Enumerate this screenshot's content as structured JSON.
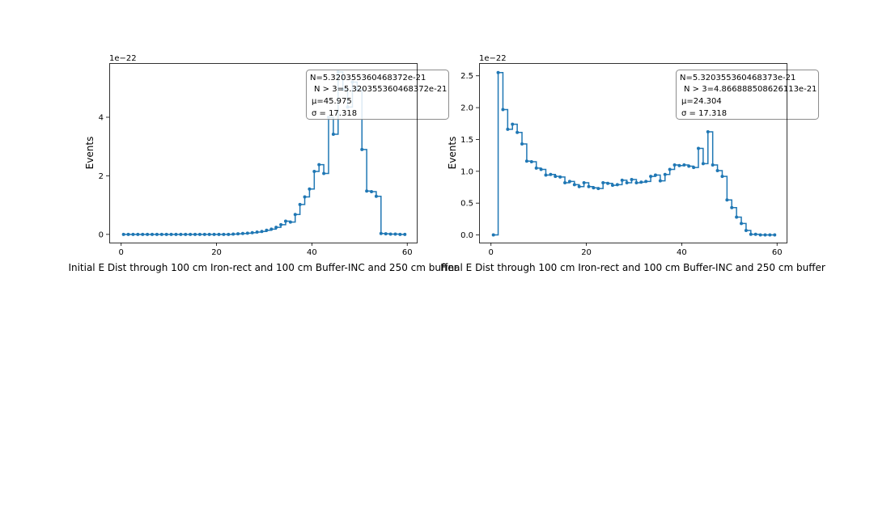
{
  "figure": {
    "background": "#ffffff",
    "line_color": "#1f77b4"
  },
  "chart_data": [
    {
      "type": "line",
      "step": "post",
      "markers": true,
      "xlabel": "Initial E Dist through 100 cm Iron-rect and 100 cm Buffer-INC and 250 cm buffer",
      "ylabel": "Events",
      "offset_label": "1e−22",
      "xlim": [
        -2.5,
        62
      ],
      "ylim": [
        -0.28,
        5.85
      ],
      "xticks": [
        0,
        20,
        40,
        60
      ],
      "yticks": [
        0,
        2,
        4
      ],
      "ytick_labels": [
        "0",
        "2",
        "4"
      ],
      "stats": [
        "N=5.320355360468372e-21",
        "N > 3=5.320355360468372e-21",
        "μ=45.975",
        "σ = 17.318"
      ],
      "x": [
        0.5,
        1.5,
        2.5,
        3.5,
        4.5,
        5.5,
        6.5,
        7.5,
        8.5,
        9.5,
        10.5,
        11.5,
        12.5,
        13.5,
        14.5,
        15.5,
        16.5,
        17.5,
        18.5,
        19.5,
        20.5,
        21.5,
        22.5,
        23.5,
        24.5,
        25.5,
        26.5,
        27.5,
        28.5,
        29.5,
        30.5,
        31.5,
        32.5,
        33.5,
        34.5,
        35.5,
        36.5,
        37.5,
        38.5,
        39.5,
        40.5,
        41.5,
        42.5,
        43.5,
        44.5,
        45.5,
        46.5,
        47.5,
        48.5,
        49.5,
        50.5,
        51.5,
        52.5,
        53.5,
        54.5,
        55.5,
        56.5,
        57.5,
        58.5,
        59.5
      ],
      "values": [
        0,
        0,
        0,
        0,
        0,
        0,
        0,
        0,
        0,
        0,
        0,
        0,
        0,
        0,
        0,
        0,
        0,
        0,
        0,
        0,
        0,
        0,
        0,
        0.01,
        0.02,
        0.03,
        0.04,
        0.06,
        0.08,
        0.1,
        0.14,
        0.18,
        0.24,
        0.33,
        0.45,
        0.42,
        0.68,
        1.02,
        1.28,
        1.55,
        2.15,
        2.38,
        2.08,
        4.0,
        3.42,
        5.55,
        4.95,
        4.35,
        5.2,
        4.95,
        2.9,
        1.48,
        1.46,
        1.3,
        0.03,
        0.02,
        0.01,
        0.01,
        0,
        0
      ]
    },
    {
      "type": "line",
      "step": "post",
      "markers": true,
      "xlabel": "Final E Dist through 100 cm Iron-rect and 100 cm Buffer-INC and 250 cm buffer",
      "ylabel": "Events",
      "offset_label": "1e−22",
      "xlim": [
        -2.5,
        62
      ],
      "ylim": [
        -0.12,
        2.7
      ],
      "xticks": [
        0,
        20,
        40,
        60
      ],
      "yticks": [
        0,
        0.5,
        1.0,
        1.5,
        2.0,
        2.5
      ],
      "ytick_labels": [
        "0.0",
        "0.5",
        "1.0",
        "1.5",
        "2.0",
        "2.5"
      ],
      "stats": [
        "N=5.320355360468373e-21",
        "N > 3=4.866888508626113e-21",
        "μ=24.304",
        "σ = 17.318"
      ],
      "x": [
        0.5,
        1.5,
        2.5,
        3.5,
        4.5,
        5.5,
        6.5,
        7.5,
        8.5,
        9.5,
        10.5,
        11.5,
        12.5,
        13.5,
        14.5,
        15.5,
        16.5,
        17.5,
        18.5,
        19.5,
        20.5,
        21.5,
        22.5,
        23.5,
        24.5,
        25.5,
        26.5,
        27.5,
        28.5,
        29.5,
        30.5,
        31.5,
        32.5,
        33.5,
        34.5,
        35.5,
        36.5,
        37.5,
        38.5,
        39.5,
        40.5,
        41.5,
        42.5,
        43.5,
        44.5,
        45.5,
        46.5,
        47.5,
        48.5,
        49.5,
        50.5,
        51.5,
        52.5,
        53.5,
        54.5,
        55.5,
        56.5,
        57.5,
        58.5,
        59.5
      ],
      "values": [
        0,
        2.55,
        1.97,
        1.66,
        1.74,
        1.61,
        1.43,
        1.16,
        1.15,
        1.05,
        1.03,
        0.94,
        0.95,
        0.92,
        0.91,
        0.82,
        0.84,
        0.79,
        0.76,
        0.82,
        0.76,
        0.74,
        0.73,
        0.82,
        0.81,
        0.78,
        0.79,
        0.86,
        0.82,
        0.87,
        0.82,
        0.83,
        0.84,
        0.92,
        0.94,
        0.85,
        0.95,
        1.03,
        1.1,
        1.09,
        1.1,
        1.08,
        1.06,
        1.36,
        1.12,
        1.62,
        1.1,
        1.01,
        0.92,
        0.55,
        0.43,
        0.28,
        0.18,
        0.07,
        0.01,
        0.01,
        0,
        0,
        0,
        0
      ]
    }
  ]
}
